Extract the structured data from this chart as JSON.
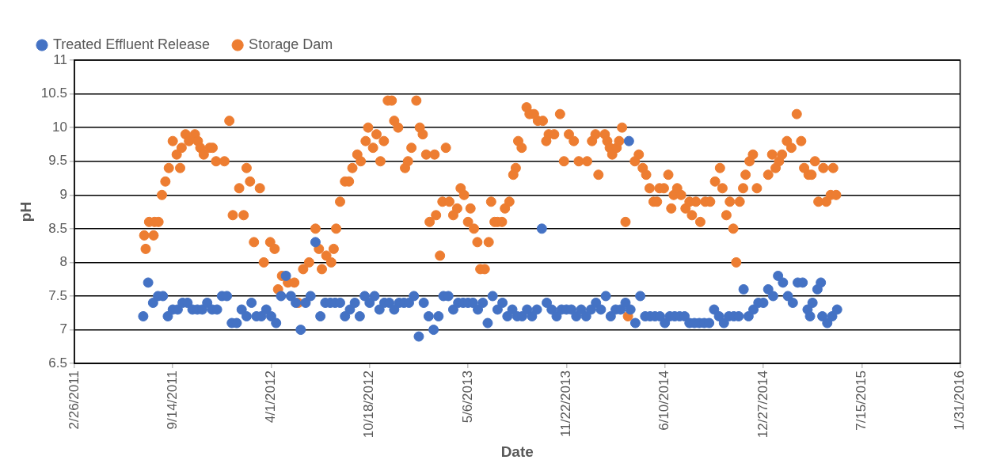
{
  "chart_data": {
    "type": "scatter",
    "xlabel": "Date",
    "ylabel": "pH",
    "legend": "top",
    "grid": "y",
    "marker": "circle",
    "xlim": [
      "2011-02-26",
      "2016-01-31"
    ],
    "xticks": [
      {
        "value": "2011-02-26",
        "label": "2/26/2011"
      },
      {
        "value": "2011-09-14",
        "label": "9/14/2011"
      },
      {
        "value": "2012-04-01",
        "label": "4/1/2012"
      },
      {
        "value": "2012-10-18",
        "label": "10/18/2012"
      },
      {
        "value": "2013-05-06",
        "label": "5/6/2013"
      },
      {
        "value": "2013-11-22",
        "label": "11/22/2013"
      },
      {
        "value": "2014-06-10",
        "label": "6/10/2014"
      },
      {
        "value": "2014-12-27",
        "label": "12/27/2014"
      },
      {
        "value": "2015-07-15",
        "label": "7/15/2015"
      },
      {
        "value": "2016-01-31",
        "label": "1/31/2016"
      }
    ],
    "ylim": [
      6.5,
      11
    ],
    "yticks": [
      6.5,
      7,
      7.5,
      8,
      8.5,
      9,
      9.5,
      10,
      10.5,
      11
    ],
    "series": [
      {
        "name": "Treated Effluent Release",
        "color": "#4472c4",
        "x": [
          "2011-07-16",
          "2011-07-26",
          "2011-08-05",
          "2011-08-15",
          "2011-08-25",
          "2011-09-04",
          "2011-09-14",
          "2011-09-24",
          "2011-10-04",
          "2011-10-14",
          "2011-10-24",
          "2011-11-03",
          "2011-11-13",
          "2011-11-23",
          "2011-12-03",
          "2011-12-13",
          "2011-12-23",
          "2012-01-02",
          "2012-01-12",
          "2012-01-22",
          "2012-02-01",
          "2012-02-11",
          "2012-02-21",
          "2012-03-02",
          "2012-03-12",
          "2012-03-22",
          "2012-04-01",
          "2012-04-11",
          "2012-04-21",
          "2012-05-01",
          "2012-05-11",
          "2012-05-21",
          "2012-05-31",
          "2012-06-10",
          "2012-06-20",
          "2012-06-30",
          "2012-07-10",
          "2012-07-20",
          "2012-07-30",
          "2012-08-09",
          "2012-08-19",
          "2012-08-29",
          "2012-09-08",
          "2012-09-18",
          "2012-09-28",
          "2012-10-08",
          "2012-10-18",
          "2012-10-28",
          "2012-11-07",
          "2012-11-17",
          "2012-11-27",
          "2012-12-07",
          "2012-12-17",
          "2012-12-27",
          "2013-01-06",
          "2013-01-16",
          "2013-01-26",
          "2013-02-05",
          "2013-02-15",
          "2013-02-25",
          "2013-03-07",
          "2013-03-17",
          "2013-03-27",
          "2013-04-06",
          "2013-04-16",
          "2013-04-26",
          "2013-05-06",
          "2013-05-16",
          "2013-05-26",
          "2013-06-05",
          "2013-06-15",
          "2013-06-25",
          "2013-07-05",
          "2013-07-15",
          "2013-07-25",
          "2013-08-04",
          "2013-08-14",
          "2013-08-24",
          "2013-09-03",
          "2013-09-13",
          "2013-09-23",
          "2013-10-03",
          "2013-10-13",
          "2013-10-23",
          "2013-11-02",
          "2013-11-12",
          "2013-11-22",
          "2013-12-02",
          "2013-12-12",
          "2013-12-22",
          "2014-01-01",
          "2014-01-11",
          "2014-01-21",
          "2014-01-31",
          "2014-02-10",
          "2014-02-20",
          "2014-03-02",
          "2014-03-12",
          "2014-03-22",
          "2014-03-29",
          "2014-04-01",
          "2014-04-11",
          "2014-04-21",
          "2014-05-01",
          "2014-05-11",
          "2014-05-21",
          "2014-05-31",
          "2014-06-10",
          "2014-06-20",
          "2014-06-30",
          "2014-07-10",
          "2014-07-20",
          "2014-07-30",
          "2014-08-09",
          "2014-08-19",
          "2014-08-29",
          "2014-09-08",
          "2014-09-18",
          "2014-09-28",
          "2014-10-08",
          "2014-10-18",
          "2014-10-28",
          "2014-11-07",
          "2014-11-17",
          "2014-11-27",
          "2014-12-07",
          "2014-12-17",
          "2014-12-27",
          "2015-01-06",
          "2015-01-16",
          "2015-01-26",
          "2015-02-05",
          "2015-02-15",
          "2015-02-25",
          "2015-03-07",
          "2015-03-17",
          "2015-03-27",
          "2015-04-01",
          "2015-04-06",
          "2015-04-16",
          "2015-04-23",
          "2015-04-26",
          "2015-05-06",
          "2015-05-16",
          "2015-05-26"
        ],
        "values": [
          7.2,
          7.7,
          7.4,
          7.5,
          7.5,
          7.2,
          7.3,
          7.3,
          7.4,
          7.4,
          7.3,
          7.3,
          7.3,
          7.4,
          7.3,
          7.3,
          7.5,
          7.5,
          7.1,
          7.1,
          7.3,
          7.2,
          7.4,
          7.2,
          7.2,
          7.3,
          7.2,
          7.1,
          7.5,
          7.8,
          7.5,
          7.4,
          7.0,
          7.4,
          7.5,
          8.3,
          7.2,
          7.4,
          7.4,
          7.4,
          7.4,
          7.2,
          7.3,
          7.4,
          7.2,
          7.5,
          7.4,
          7.5,
          7.3,
          7.4,
          7.4,
          7.3,
          7.4,
          7.4,
          7.4,
          7.5,
          6.9,
          7.4,
          7.2,
          7.0,
          7.2,
          7.5,
          7.5,
          7.3,
          7.4,
          7.4,
          7.4,
          7.4,
          7.3,
          7.4,
          7.1,
          7.5,
          7.3,
          7.4,
          7.2,
          7.3,
          7.2,
          7.2,
          7.3,
          7.2,
          7.3,
          8.5,
          7.4,
          7.3,
          7.2,
          7.3,
          7.3,
          7.3,
          7.2,
          7.3,
          7.2,
          7.3,
          7.4,
          7.3,
          7.5,
          7.2,
          7.3,
          7.3,
          7.4,
          9.8,
          7.3,
          7.1,
          7.5,
          7.2,
          7.2,
          7.2,
          7.2,
          7.1,
          7.2,
          7.2,
          7.2,
          7.2,
          7.1,
          7.1,
          7.1,
          7.1,
          7.1,
          7.3,
          7.2,
          7.1,
          7.2,
          7.2,
          7.2,
          7.6,
          7.2,
          7.3,
          7.4,
          7.4,
          7.6,
          7.5,
          7.8,
          7.7,
          7.5,
          7.4,
          7.7,
          7.7,
          7.3,
          7.2,
          7.4,
          7.6,
          7.7,
          7.2,
          7.1,
          7.2,
          7.3
        ]
      },
      {
        "name": "Storage Dam",
        "color": "#ed7d31",
        "x": [
          "2011-07-18",
          "2011-07-21",
          "2011-07-28",
          "2011-08-06",
          "2011-08-08",
          "2011-08-16",
          "2011-08-23",
          "2011-08-30",
          "2011-09-06",
          "2011-09-14",
          "2011-09-22",
          "2011-09-29",
          "2011-10-02",
          "2011-10-10",
          "2011-10-17",
          "2011-10-29",
          "2011-11-04",
          "2011-11-09",
          "2011-11-16",
          "2011-11-28",
          "2011-12-04",
          "2011-12-11",
          "2011-12-28",
          "2012-01-07",
          "2012-01-14",
          "2012-01-27",
          "2012-02-05",
          "2012-02-11",
          "2012-02-18",
          "2012-02-26",
          "2012-03-09",
          "2012-03-17",
          "2012-03-30",
          "2012-04-08",
          "2012-04-15",
          "2012-04-23",
          "2012-05-05",
          "2012-05-18",
          "2012-05-26",
          "2012-06-05",
          "2012-06-17",
          "2012-06-30",
          "2012-07-07",
          "2012-07-13",
          "2012-07-22",
          "2012-08-01",
          "2012-08-06",
          "2012-08-11",
          "2012-08-19",
          "2012-08-29",
          "2012-09-06",
          "2012-09-13",
          "2012-09-23",
          "2012-09-30",
          "2012-10-10",
          "2012-10-15",
          "2012-10-25",
          "2012-11-01",
          "2012-11-09",
          "2012-11-16",
          "2012-11-24",
          "2012-12-02",
          "2012-12-07",
          "2012-12-15",
          "2012-12-29",
          "2013-01-04",
          "2013-01-11",
          "2013-01-21",
          "2013-01-28",
          "2013-02-03",
          "2013-02-10",
          "2013-02-17",
          "2013-02-27",
          "2013-03-02",
          "2013-03-10",
          "2013-03-15",
          "2013-03-22",
          "2013-03-29",
          "2013-04-06",
          "2013-04-14",
          "2013-04-21",
          "2013-04-28",
          "2013-05-06",
          "2013-05-11",
          "2013-05-18",
          "2013-05-25",
          "2013-05-31",
          "2013-06-09",
          "2013-06-17",
          "2013-06-22",
          "2013-06-29",
          "2013-07-05",
          "2013-07-14",
          "2013-07-20",
          "2013-07-29",
          "2013-08-06",
          "2013-08-11",
          "2013-08-16",
          "2013-08-23",
          "2013-09-02",
          "2013-09-08",
          "2013-09-17",
          "2013-09-25",
          "2013-10-05",
          "2013-10-12",
          "2013-10-17",
          "2013-10-28",
          "2013-11-09",
          "2013-11-17",
          "2013-11-27",
          "2013-12-07",
          "2013-12-17",
          "2014-01-03",
          "2014-01-13",
          "2014-01-20",
          "2014-01-26",
          "2014-02-08",
          "2014-02-13",
          "2014-02-18",
          "2014-02-23",
          "2014-03-04",
          "2014-03-09",
          "2014-03-15",
          "2014-03-22",
          "2014-03-27",
          "2014-04-10",
          "2014-04-18",
          "2014-04-26",
          "2014-05-03",
          "2014-05-10",
          "2014-05-18",
          "2014-05-25",
          "2014-05-30",
          "2014-06-08",
          "2014-06-17",
          "2014-06-23",
          "2014-06-28",
          "2014-07-05",
          "2014-07-13",
          "2014-07-22",
          "2014-07-30",
          "2014-08-04",
          "2014-08-12",
          "2014-08-21",
          "2014-08-31",
          "2014-09-10",
          "2014-09-20",
          "2014-09-30",
          "2014-10-05",
          "2014-10-13",
          "2014-10-20",
          "2014-10-27",
          "2014-11-02",
          "2014-11-09",
          "2014-11-16",
          "2014-11-21",
          "2014-11-29",
          "2014-12-06",
          "2014-12-14",
          "2015-01-06",
          "2015-01-14",
          "2015-01-21",
          "2015-01-28",
          "2015-02-03",
          "2015-02-13",
          "2015-02-22",
          "2015-03-05",
          "2015-03-14",
          "2015-03-20",
          "2015-03-29",
          "2015-04-04",
          "2015-04-11",
          "2015-04-18",
          "2015-04-28",
          "2015-05-04",
          "2015-05-13",
          "2015-05-18",
          "2015-05-24"
        ],
        "values": [
          8.4,
          8.2,
          8.6,
          8.4,
          8.6,
          8.6,
          9.0,
          9.2,
          9.4,
          9.8,
          9.6,
          9.4,
          9.7,
          9.9,
          9.8,
          9.9,
          9.8,
          9.7,
          9.6,
          9.7,
          9.7,
          9.5,
          9.5,
          10.1,
          8.7,
          9.1,
          8.7,
          9.4,
          9.2,
          8.3,
          9.1,
          8.0,
          8.3,
          8.2,
          7.6,
          7.8,
          7.7,
          7.7,
          7.4,
          7.9,
          8.0,
          8.5,
          8.2,
          7.9,
          8.1,
          8.0,
          8.2,
          8.5,
          8.9,
          9.2,
          9.2,
          9.4,
          9.6,
          9.5,
          9.8,
          10.0,
          9.7,
          9.9,
          9.5,
          9.8,
          10.4,
          10.4,
          10.1,
          10.0,
          9.4,
          9.5,
          9.7,
          10.4,
          10.0,
          9.9,
          9.6,
          8.6,
          9.6,
          8.7,
          8.1,
          8.9,
          9.7,
          8.9,
          8.7,
          8.8,
          9.1,
          9.0,
          8.6,
          8.8,
          8.5,
          8.3,
          7.9,
          7.9,
          8.3,
          8.9,
          8.6,
          8.6,
          8.6,
          8.8,
          8.9,
          9.3,
          9.4,
          9.8,
          9.7,
          10.3,
          10.2,
          10.2,
          10.1,
          10.1,
          9.8,
          9.9,
          9.9,
          10.2,
          9.5,
          9.9,
          9.8,
          9.5,
          9.5,
          9.8,
          9.9,
          9.3,
          9.9,
          9.8,
          9.7,
          9.6,
          9.7,
          9.8,
          10.0,
          8.6,
          7.2,
          9.5,
          9.6,
          9.4,
          9.3,
          9.1,
          8.9,
          8.9,
          9.1,
          9.1,
          9.3,
          8.8,
          9.0,
          9.1,
          9.0,
          8.8,
          8.9,
          8.7,
          8.9,
          8.6,
          8.9,
          8.9,
          9.2,
          9.4,
          9.1,
          8.7,
          8.9,
          8.5,
          8.0,
          8.9,
          9.1,
          9.3,
          9.5,
          9.6,
          9.1,
          9.3,
          9.6,
          9.4,
          9.5,
          9.6,
          9.8,
          9.7,
          10.2,
          9.8,
          9.4,
          9.3,
          9.3,
          9.5,
          8.9,
          9.4,
          8.9,
          9.0,
          9.4,
          9.0
        ]
      }
    ]
  }
}
